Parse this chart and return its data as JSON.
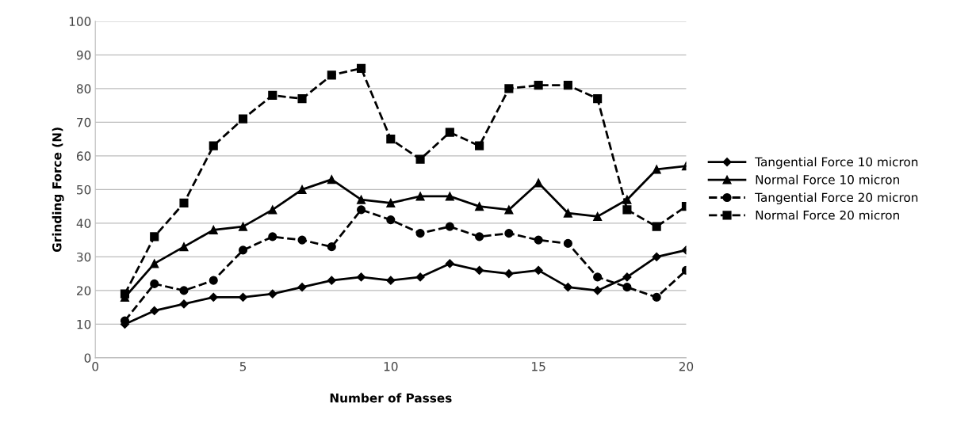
{
  "chart_data": {
    "type": "line",
    "xlabel": "Number of Passes",
    "ylabel": "Grinding Force (N)",
    "x": [
      1,
      2,
      3,
      4,
      5,
      6,
      7,
      8,
      9,
      10,
      11,
      12,
      13,
      14,
      15,
      16,
      17,
      18,
      19,
      20
    ],
    "xlim": [
      0,
      20
    ],
    "xticks": [
      0,
      5,
      10,
      15,
      20
    ],
    "ylim": [
      0,
      100
    ],
    "yticks": [
      0,
      10,
      20,
      30,
      40,
      50,
      60,
      70,
      80,
      90,
      100
    ],
    "grid": "y",
    "legend": "right",
    "series": [
      {
        "name": "Tangential Force 10 micron",
        "color": "#000000",
        "marker": "diamond",
        "line_style": "solid",
        "values": [
          10,
          14,
          16,
          18,
          18,
          19,
          21,
          23,
          24,
          23,
          24,
          28,
          26,
          25,
          26,
          21,
          20,
          24,
          30,
          32
        ]
      },
      {
        "name": "Normal Force 10 micron",
        "color": "#000000",
        "marker": "triangle",
        "line_style": "solid",
        "values": [
          18,
          28,
          33,
          38,
          39,
          44,
          50,
          53,
          47,
          46,
          48,
          48,
          45,
          44,
          52,
          43,
          42,
          47,
          56,
          57
        ]
      },
      {
        "name": "Tangential Force 20 micron",
        "color": "#000000",
        "marker": "circle",
        "line_style": "dashed",
        "values": [
          11,
          22,
          20,
          23,
          32,
          36,
          35,
          33,
          44,
          41,
          37,
          39,
          36,
          37,
          35,
          34,
          24,
          21,
          18,
          26
        ]
      },
      {
        "name": "Normal Force 20 micron",
        "color": "#000000",
        "marker": "square",
        "line_style": "dashed",
        "values": [
          19,
          36,
          46,
          63,
          71,
          78,
          77,
          84,
          86,
          65,
          59,
          67,
          63,
          80,
          81,
          81,
          77,
          44,
          39,
          45
        ]
      }
    ]
  }
}
